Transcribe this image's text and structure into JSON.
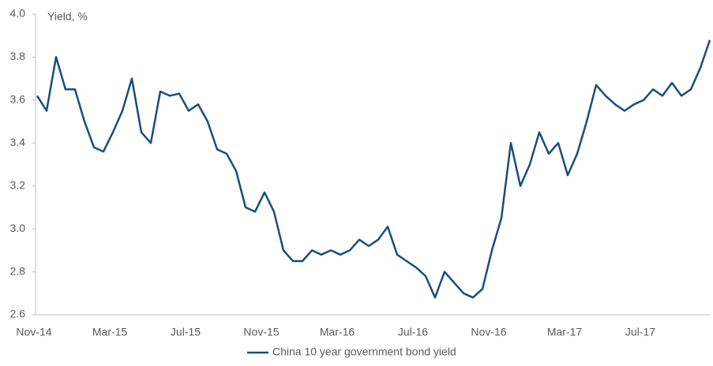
{
  "chart_data": {
    "type": "line",
    "y_axis_label": "Yield, %",
    "categories": [
      "Nov-14",
      null,
      null,
      null,
      null,
      null,
      null,
      null,
      "Mar-15",
      null,
      null,
      null,
      null,
      null,
      null,
      null,
      "Jul-15",
      null,
      null,
      null,
      null,
      null,
      null,
      null,
      "Nov-15",
      null,
      null,
      null,
      null,
      null,
      null,
      null,
      "Mar-16",
      null,
      null,
      null,
      null,
      null,
      null,
      null,
      "Jul-16",
      null,
      null,
      null,
      null,
      null,
      null,
      null,
      "Nov-16",
      null,
      null,
      null,
      null,
      null,
      null,
      null,
      "Mar-17",
      null,
      null,
      null,
      null,
      null,
      null,
      null,
      "Jul-17",
      null,
      null,
      null,
      null,
      null,
      null,
      null
    ],
    "series": [
      {
        "name": "China 10 year government bond yield",
        "color": "#1a4d7c",
        "values": [
          3.62,
          3.55,
          3.8,
          3.65,
          3.65,
          3.5,
          3.38,
          3.36,
          3.45,
          3.55,
          3.7,
          3.45,
          3.4,
          3.64,
          3.62,
          3.63,
          3.55,
          3.58,
          3.5,
          3.37,
          3.35,
          3.27,
          3.1,
          3.08,
          3.17,
          3.08,
          2.9,
          2.85,
          2.85,
          2.9,
          2.88,
          2.9,
          2.88,
          2.9,
          2.95,
          2.92,
          2.95,
          3.01,
          2.88,
          2.85,
          2.82,
          2.78,
          2.68,
          2.8,
          2.75,
          2.7,
          2.68,
          2.72,
          2.9,
          3.05,
          3.4,
          3.2,
          3.3,
          3.45,
          3.35,
          3.4,
          3.25,
          3.35,
          3.5,
          3.67,
          3.62,
          3.58,
          3.55,
          3.58,
          3.6,
          3.65,
          3.62,
          3.68,
          3.62,
          3.65,
          3.75,
          3.88
        ]
      }
    ],
    "ylim": [
      2.6,
      4.0
    ],
    "yticks": [
      {
        "value": 2.6,
        "label": "2.6"
      },
      2.8,
      {
        "value": 3,
        "label": "3.0"
      },
      3.2,
      3.4,
      3.6,
      3.8,
      {
        "value": 4,
        "label": "4.0"
      }
    ],
    "grid": false,
    "legend": "bottom"
  }
}
